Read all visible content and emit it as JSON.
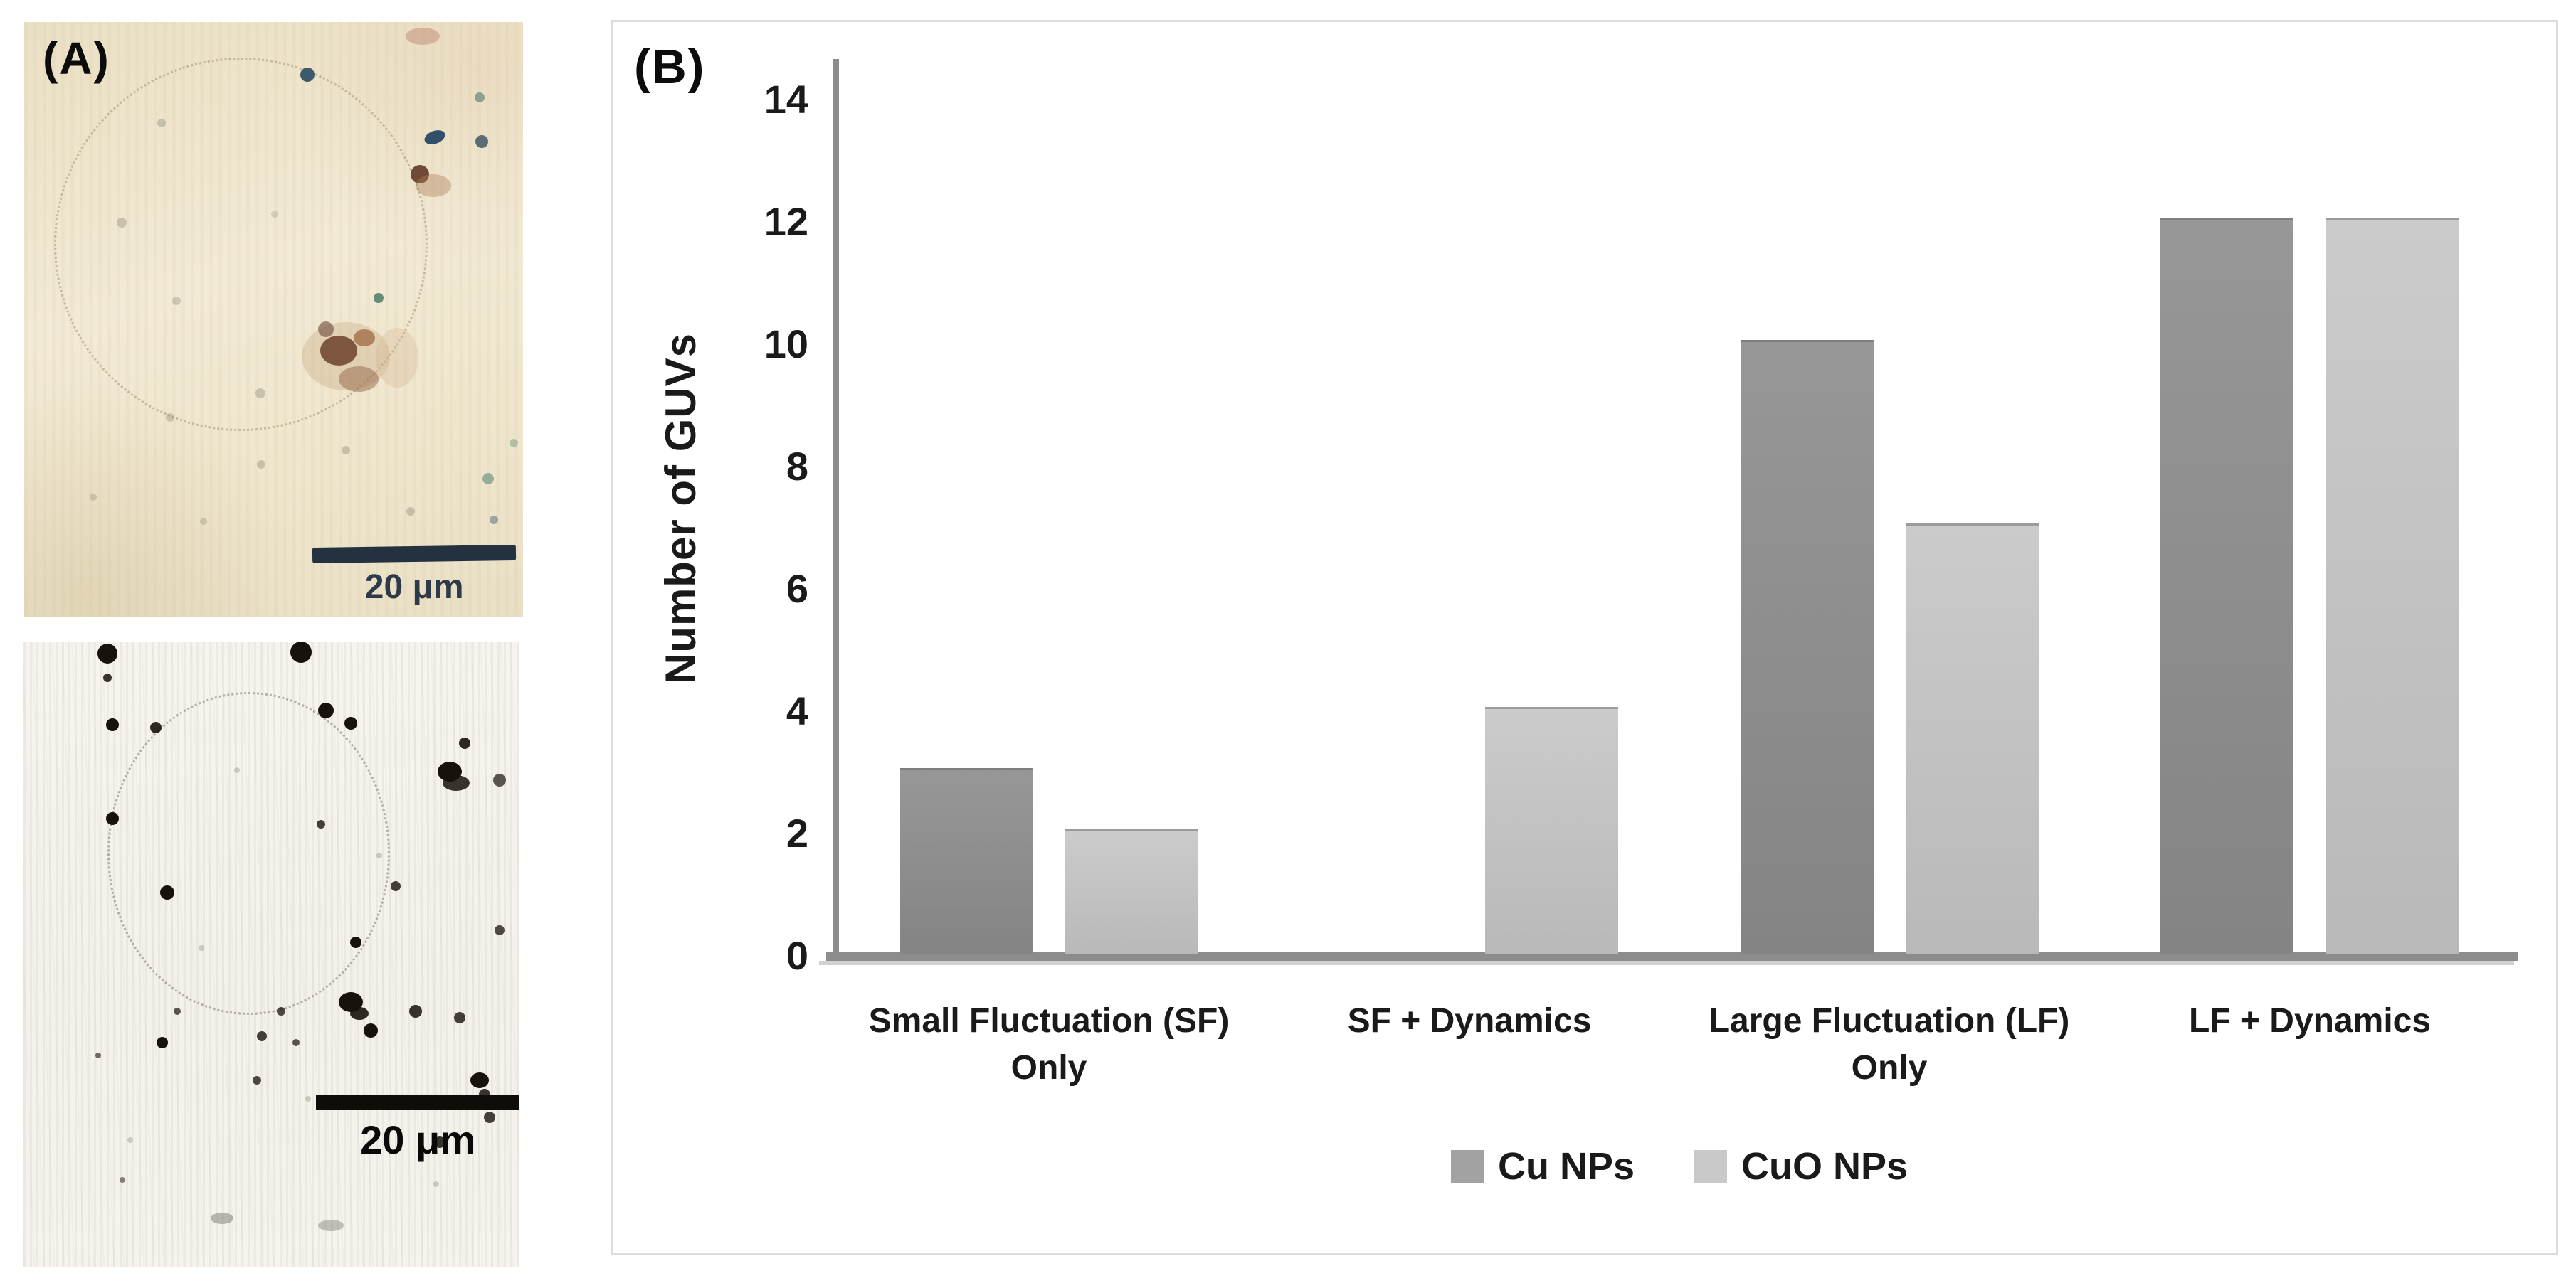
{
  "panel_a": {
    "label": "(A)",
    "top_image": {
      "scale_bar_label": "20 μm",
      "bar_color": "#24313f",
      "label_color": "#2c3a49",
      "background_base": "#efe6cf"
    },
    "bottom_image": {
      "scale_bar_label": "20 μm",
      "bar_color": "#0f0d0a",
      "label_color": "#0c0a08",
      "background_base": "#f4f2eb"
    }
  },
  "panel_b": {
    "label": "(B)",
    "border_color": "#dcdcdc"
  },
  "chart_data": {
    "type": "bar",
    "title": "",
    "xlabel": "",
    "ylabel": "Number of GUVs",
    "categories": [
      "Small Fluctuation (SF)\nOnly",
      "SF + Dynamics",
      "Large Fluctuation (LF)\nOnly",
      "LF + Dynamics"
    ],
    "series": [
      {
        "name": "Cu NPs",
        "values": [
          3,
          0,
          10,
          12
        ],
        "color_top": "#979797",
        "color_bottom": "#848484",
        "legend_color": "#a2a2a2"
      },
      {
        "name": "CuO NPs",
        "values": [
          2,
          4,
          7,
          12
        ],
        "color_top": "#cbcbcb",
        "color_bottom": "#b9b9b9",
        "legend_color": "#c9c9c9"
      }
    ],
    "ylim": [
      0,
      14.6
    ],
    "yticks": [
      0,
      2,
      4,
      6,
      8,
      10,
      12,
      14
    ],
    "grid": false,
    "legend_position": "bottom",
    "axis_color": "#8c8c8c",
    "axis_shadow_color": "#c2c2c2",
    "text_color": "#1a1a1a"
  }
}
